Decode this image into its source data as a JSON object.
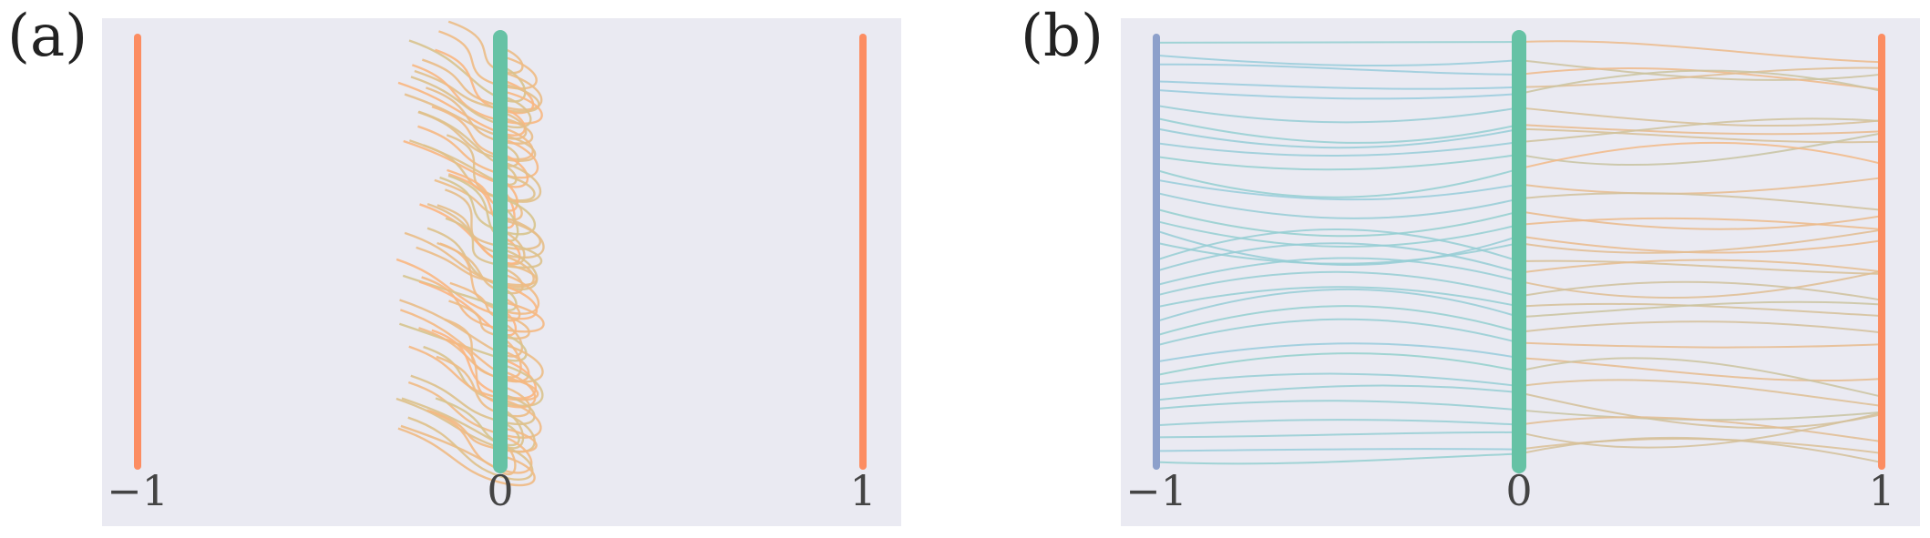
{
  "chart_data": [
    {
      "type": "line",
      "panel_label": "(a)",
      "xticks": [
        "−1",
        "0",
        "1"
      ],
      "xtick_values": [
        -1,
        0,
        1
      ],
      "xlim": [
        -1.02,
        1.1
      ],
      "ylim": [
        0,
        1
      ],
      "grid": false,
      "background": "#eaeaf2",
      "bars": [
        {
          "x": -1,
          "color": "#fc8d62"
        },
        {
          "x": 0,
          "color": "#66c2a5"
        },
        {
          "x": 1,
          "color": "#fc8d62"
        }
      ],
      "curve_colors": {
        "start": "#a6d7a0",
        "end": "#fdb57f"
      },
      "description_of_marks": "streamlines leaving the center bar and curving leftward, ending between x=-0.3 and x=-0.1",
      "ranges": {
        "end_x": [
          -0.29,
          -0.13
        ],
        "bulge_x": [
          0.05,
          0.16
        ]
      }
    },
    {
      "type": "line",
      "panel_label": "(b)",
      "xticks": [
        "−1",
        "0",
        "1"
      ],
      "xtick_values": [
        -1,
        0,
        1
      ],
      "xlim": [
        -1.02,
        1.1
      ],
      "ylim": [
        0,
        1
      ],
      "grid": false,
      "background": "#eaeaf2",
      "bars": [
        {
          "x": -1,
          "color": "#8da0cb"
        },
        {
          "x": 0,
          "color": "#66c2a5"
        },
        {
          "x": 1,
          "color": "#fc8d62"
        }
      ],
      "curve_colors": {
        "left": "#9ec5ee",
        "middle": "#8fd3c5",
        "right": "#fdb57f"
      },
      "description_of_marks": "smooth curves connecting the x=-1 bar to the x=0 bar and the x=0 bar to the x=1 bar"
    }
  ]
}
